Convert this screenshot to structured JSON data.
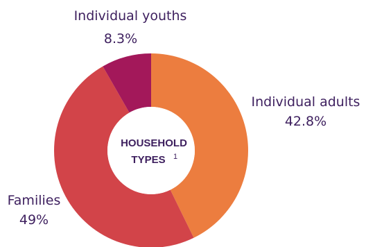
{
  "chart_data": {
    "type": "pie",
    "variant": "donut",
    "center_label_lines": [
      "HOUSEHOLD",
      "TYPES"
    ],
    "center_footnote": "1",
    "slices": [
      {
        "label": "Individual adults",
        "value": 42.8,
        "value_label": "42.8%",
        "color": "#ec7d3f"
      },
      {
        "label": "Families",
        "value": 49,
        "value_label": "49%",
        "color": "#d24449"
      },
      {
        "label": "Individual youths",
        "value": 8.3,
        "value_label": "8.3%",
        "color": "#a3185a"
      }
    ]
  }
}
